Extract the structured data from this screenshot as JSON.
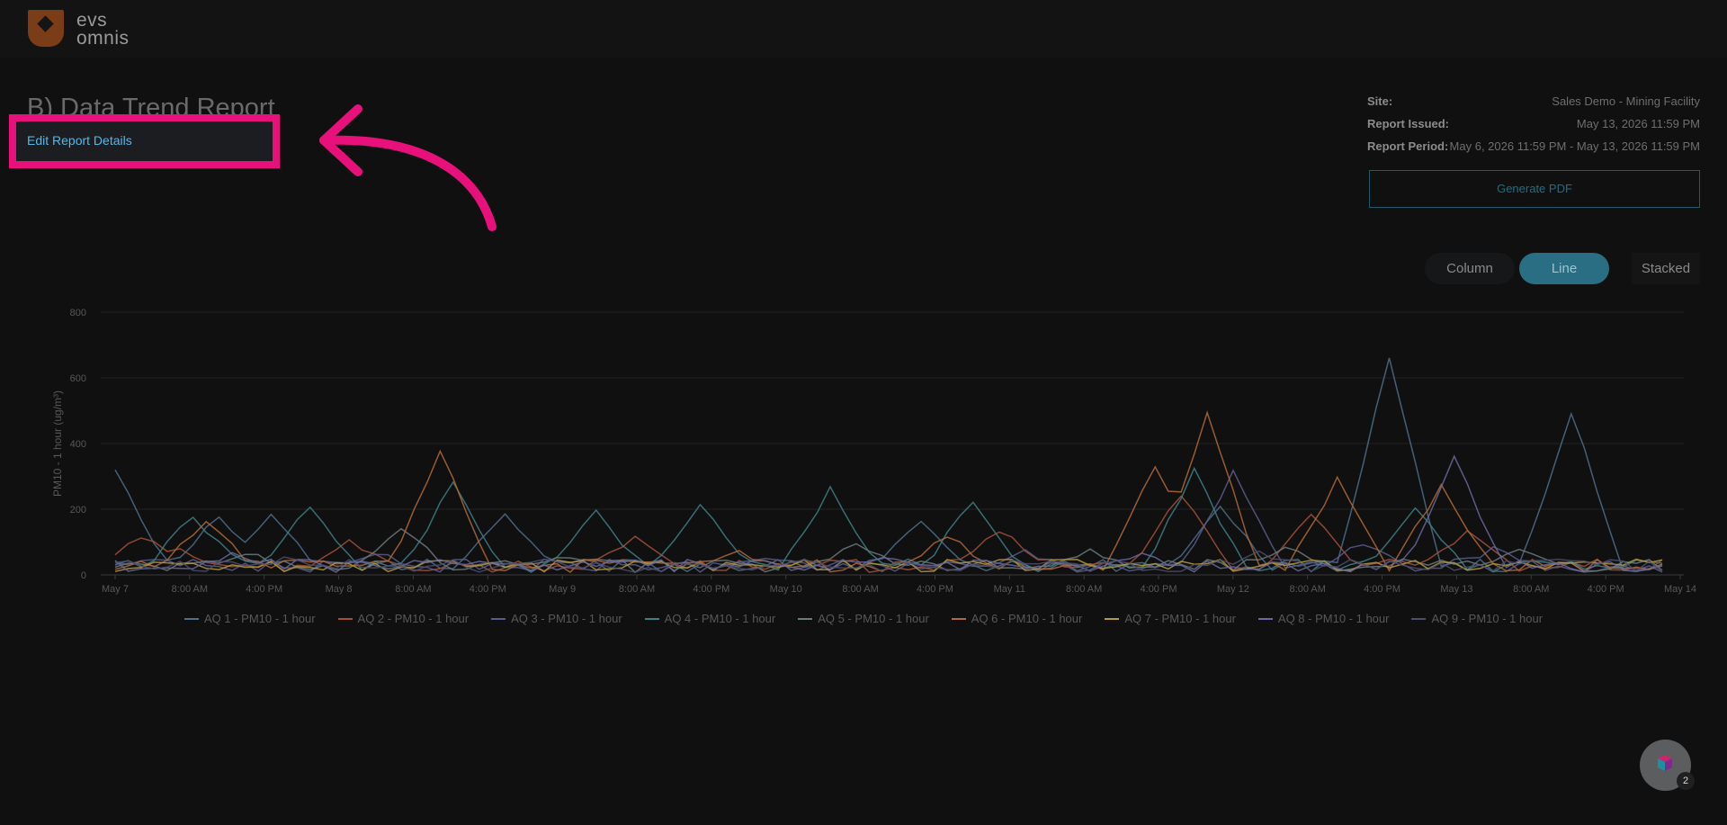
{
  "brand": {
    "line1": "evs",
    "line2": "omnis"
  },
  "report": {
    "title": "B) Data Trend Report",
    "edit_label": "Edit Report Details"
  },
  "meta": {
    "site_label": "Site:",
    "site_value": "Sales Demo - Mining Facility",
    "issued_label": "Report Issued:",
    "issued_value": "May 13, 2026 11:59 PM",
    "period_label": "Report Period:",
    "period_value": "May 6, 2026 11:59 PM - May 13, 2026 11:59 PM"
  },
  "actions": {
    "generate_pdf": "Generate PDF"
  },
  "chart_toggle": {
    "column": "Column",
    "line": "Line",
    "stacked": "Stacked",
    "selected": "Line"
  },
  "assistant": {
    "badge_count": "2"
  },
  "colors": {
    "highlight": "#e8117b",
    "link": "#56b7e8",
    "accent": "#2a6e83"
  },
  "chart_data": {
    "type": "line",
    "ylabel": "PM10 - 1 hour (ug/m³)",
    "ylim": [
      0,
      800
    ],
    "yticks": [
      0,
      200,
      400,
      600,
      800
    ],
    "xticks": [
      "May 7",
      "8:00 AM",
      "4:00 PM",
      "May 8",
      "8:00 AM",
      "4:00 PM",
      "May 9",
      "8:00 AM",
      "4:00 PM",
      "May 10",
      "8:00 AM",
      "4:00 PM",
      "May 11",
      "8:00 AM",
      "4:00 PM",
      "May 12",
      "8:00 AM",
      "4:00 PM",
      "May 13",
      "8:00 AM",
      "4:00 PM",
      "May 14"
    ],
    "series": [
      {
        "name": "AQ 1 - PM10 - 1 hour",
        "color": "#4f6f8c",
        "peaks": [
          [
            0,
            310
          ],
          [
            1,
            180
          ],
          [
            8,
            170
          ],
          [
            12,
            170
          ],
          [
            30,
            180
          ],
          [
            62,
            150
          ],
          [
            85,
            200
          ],
          [
            98,
            660
          ],
          [
            112,
            490
          ]
        ]
      },
      {
        "name": "AQ 2 - PM10 - 1 hour",
        "color": "#a4513a",
        "peaks": [
          [
            2,
            110
          ],
          [
            5,
            60
          ],
          [
            18,
            90
          ],
          [
            40,
            110
          ],
          [
            68,
            130
          ],
          [
            82,
            240
          ],
          [
            92,
            170
          ],
          [
            104,
            120
          ]
        ]
      },
      {
        "name": "AQ 3 - PM10 - 1 hour",
        "color": "#5a5d8c",
        "peaks": [
          [
            3,
            40
          ],
          [
            20,
            60
          ],
          [
            50,
            40
          ],
          [
            70,
            60
          ],
          [
            86,
            300
          ],
          [
            96,
            90
          ],
          [
            106,
            70
          ]
        ]
      },
      {
        "name": "AQ 4 - PM10 - 1 hour",
        "color": "#3f7f86",
        "peaks": [
          [
            6,
            170
          ],
          [
            15,
            200
          ],
          [
            26,
            270
          ],
          [
            37,
            180
          ],
          [
            45,
            200
          ],
          [
            55,
            250
          ],
          [
            66,
            220
          ],
          [
            83,
            310
          ],
          [
            100,
            200
          ]
        ]
      },
      {
        "name": "AQ 5 - PM10 - 1 hour",
        "color": "#6c7a7e",
        "peaks": [
          [
            10,
            60
          ],
          [
            22,
            130
          ],
          [
            34,
            50
          ],
          [
            57,
            90
          ],
          [
            75,
            60
          ],
          [
            90,
            80
          ],
          [
            108,
            60
          ]
        ]
      },
      {
        "name": "AQ 6 - PM10 - 1 hour",
        "color": "#b06a3a",
        "peaks": [
          [
            7,
            160
          ],
          [
            25,
            370
          ],
          [
            48,
            60
          ],
          [
            64,
            110
          ],
          [
            80,
            320
          ],
          [
            84,
            490
          ],
          [
            94,
            280
          ],
          [
            102,
            260
          ]
        ]
      },
      {
        "name": "AQ 7 - PM10 - 1 hour",
        "color": "#b59a3a",
        "peaks": [
          [
            4,
            20
          ],
          [
            25,
            30
          ],
          [
            50,
            20
          ],
          [
            77,
            20
          ],
          [
            99,
            15
          ]
        ]
      },
      {
        "name": "AQ 8 - PM10 - 1 hour",
        "color": "#6a6aa0",
        "peaks": [
          [
            9,
            50
          ],
          [
            28,
            30
          ],
          [
            59,
            40
          ],
          [
            79,
            50
          ],
          [
            103,
            350
          ]
        ]
      },
      {
        "name": "AQ 9 - PM10 - 1 hour",
        "color": "#4c4c6c",
        "peaks": [
          [
            13,
            40
          ],
          [
            33,
            30
          ],
          [
            72,
            40
          ],
          [
            88,
            60
          ],
          [
            110,
            40
          ]
        ]
      }
    ]
  }
}
